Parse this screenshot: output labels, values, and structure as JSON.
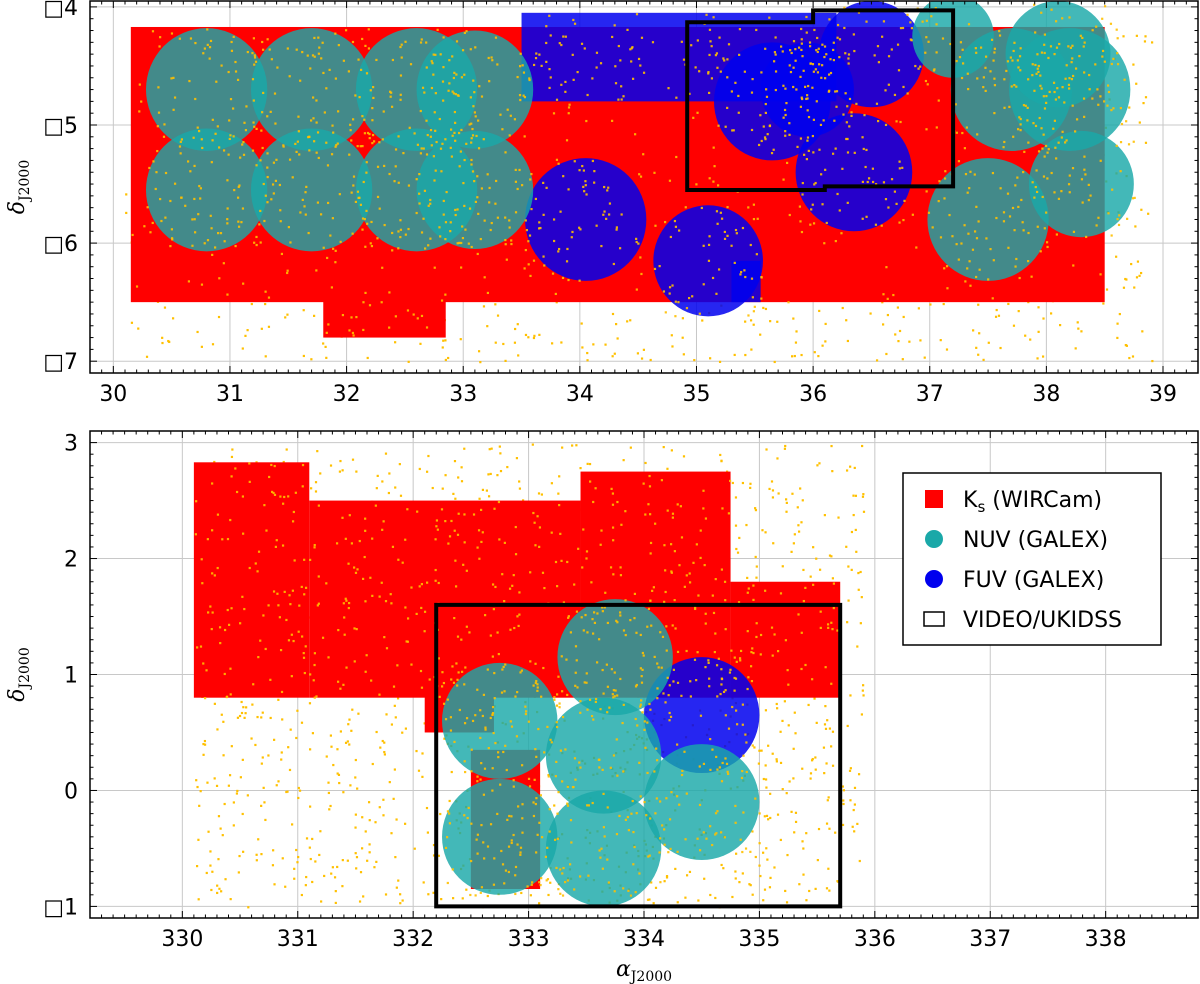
{
  "chart_data": [
    {
      "type": "scatter",
      "panel": "top",
      "xlim": [
        29.8,
        39.3
      ],
      "ylim": [
        -7.1,
        -3.95
      ],
      "xticks": [
        30,
        31,
        32,
        33,
        34,
        35,
        36,
        37,
        38,
        39
      ],
      "yticks": [
        -4,
        -5,
        -6,
        -7
      ],
      "ytick_labels": [
        "□4",
        "□5",
        "□6",
        "□7"
      ],
      "ylabel": "δ",
      "ylabel_sub": "J2000",
      "grid": true,
      "scatter": {
        "color": "#ffc000",
        "extent": {
          "x": [
            30.1,
            38.9
          ],
          "y": [
            -7.0,
            -4.2
          ]
        }
      },
      "regions": [
        {
          "series": "Ks",
          "kind": "rect",
          "x": [
            30.15,
            38.5
          ],
          "y": [
            -6.5,
            -4.17
          ]
        },
        {
          "series": "Ks",
          "kind": "rect",
          "x": [
            31.8,
            32.85
          ],
          "y": [
            -6.8,
            -6.4
          ]
        },
        {
          "series": "FUV",
          "kind": "rect",
          "x": [
            33.5,
            36.2
          ],
          "y": [
            -4.8,
            -4.05
          ]
        },
        {
          "series": "FUV",
          "kind": "circle",
          "cx": 34.05,
          "cy": -5.8,
          "r": 0.52
        },
        {
          "series": "FUV",
          "kind": "circle",
          "cx": 35.1,
          "cy": -6.15,
          "r": 0.47
        },
        {
          "series": "FUV",
          "kind": "circle",
          "cx": 35.65,
          "cy": -4.8,
          "r": 0.5
        },
        {
          "series": "FUV",
          "kind": "circle",
          "cx": 36.35,
          "cy": -5.4,
          "r": 0.5
        },
        {
          "series": "FUV",
          "kind": "circle",
          "cx": 36.5,
          "cy": -4.4,
          "r": 0.45
        },
        {
          "series": "FUV",
          "kind": "circle",
          "cx": 35.95,
          "cy": -4.7,
          "r": 0.4
        },
        {
          "series": "NUV",
          "kind": "circle",
          "cx": 30.8,
          "cy": -4.7,
          "r": 0.52
        },
        {
          "series": "NUV",
          "kind": "circle",
          "cx": 31.7,
          "cy": -4.7,
          "r": 0.52
        },
        {
          "series": "NUV",
          "kind": "circle",
          "cx": 32.6,
          "cy": -4.7,
          "r": 0.52
        },
        {
          "series": "NUV",
          "kind": "circle",
          "cx": 33.1,
          "cy": -4.7,
          "r": 0.5
        },
        {
          "series": "NUV",
          "kind": "circle",
          "cx": 30.8,
          "cy": -5.55,
          "r": 0.52
        },
        {
          "series": "NUV",
          "kind": "circle",
          "cx": 31.7,
          "cy": -5.55,
          "r": 0.52
        },
        {
          "series": "NUV",
          "kind": "circle",
          "cx": 32.6,
          "cy": -5.55,
          "r": 0.52
        },
        {
          "series": "NUV",
          "kind": "circle",
          "cx": 33.1,
          "cy": -5.55,
          "r": 0.5
        },
        {
          "series": "NUV",
          "kind": "circle",
          "cx": 37.7,
          "cy": -4.7,
          "r": 0.52
        },
        {
          "series": "NUV",
          "kind": "circle",
          "cx": 38.2,
          "cy": -4.7,
          "r": 0.52
        },
        {
          "series": "NUV",
          "kind": "circle",
          "cx": 37.5,
          "cy": -5.8,
          "r": 0.52
        },
        {
          "series": "NUV",
          "kind": "circle",
          "cx": 38.3,
          "cy": -5.5,
          "r": 0.45
        },
        {
          "series": "NUV",
          "kind": "circle",
          "cx": 37.2,
          "cy": -4.25,
          "r": 0.35
        },
        {
          "series": "NUV",
          "kind": "circle",
          "cx": 38.1,
          "cy": -4.4,
          "r": 0.45
        },
        {
          "series": "FUV",
          "kind": "rect",
          "x": [
            35.3,
            35.55
          ],
          "y": [
            -6.5,
            -6.15
          ]
        }
      ],
      "video_outline": [
        [
          34.92,
          -4.13
        ],
        [
          36.0,
          -4.13
        ],
        [
          36.0,
          -4.03
        ],
        [
          37.2,
          -4.03
        ],
        [
          37.2,
          -5.52
        ],
        [
          36.1,
          -5.52
        ],
        [
          36.1,
          -5.55
        ],
        [
          34.92,
          -5.55
        ]
      ]
    },
    {
      "type": "scatter",
      "panel": "bottom",
      "xlim": [
        329.2,
        338.8
      ],
      "ylim": [
        -1.1,
        3.1
      ],
      "xticks": [
        330,
        331,
        332,
        333,
        334,
        335,
        336,
        337,
        338
      ],
      "yticks": [
        3,
        2,
        1,
        0,
        -1
      ],
      "ytick_labels": [
        "3",
        "2",
        "1",
        "0",
        "□1"
      ],
      "xlabel": "α",
      "xlabel_sub": "J2000",
      "ylabel": "δ",
      "ylabel_sub": "J2000",
      "grid": true,
      "scatter": {
        "color": "#ffc000",
        "extent": {
          "x": [
            330.1,
            335.9
          ],
          "y": [
            -1.0,
            3.0
          ]
        }
      },
      "regions": [
        {
          "series": "Ks",
          "kind": "rect",
          "x": [
            330.1,
            331.1
          ],
          "y": [
            0.8,
            2.83
          ]
        },
        {
          "series": "Ks",
          "kind": "rect",
          "x": [
            331.1,
            333.45
          ],
          "y": [
            0.8,
            2.5
          ]
        },
        {
          "series": "Ks",
          "kind": "rect",
          "x": [
            333.45,
            334.75
          ],
          "y": [
            0.8,
            2.75
          ]
        },
        {
          "series": "Ks",
          "kind": "rect",
          "x": [
            334.75,
            335.7
          ],
          "y": [
            0.8,
            1.8
          ]
        },
        {
          "series": "Ks",
          "kind": "rect",
          "x": [
            332.1,
            332.7
          ],
          "y": [
            0.5,
            0.9
          ]
        },
        {
          "series": "Ks",
          "kind": "rect",
          "x": [
            332.5,
            333.1
          ],
          "y": [
            -0.85,
            0.35
          ]
        },
        {
          "series": "NUV",
          "kind": "circle",
          "cx": 333.75,
          "cy": 1.15,
          "r": 0.5
        },
        {
          "series": "NUV",
          "kind": "circle",
          "cx": 332.75,
          "cy": 0.6,
          "r": 0.5
        },
        {
          "series": "NUV",
          "kind": "circle",
          "cx": 333.65,
          "cy": 0.3,
          "r": 0.5
        },
        {
          "series": "NUV",
          "kind": "circle",
          "cx": 332.75,
          "cy": -0.4,
          "r": 0.5
        },
        {
          "series": "NUV",
          "kind": "circle",
          "cx": 333.65,
          "cy": -0.5,
          "r": 0.5
        },
        {
          "series": "NUV",
          "kind": "circle",
          "cx": 334.5,
          "cy": -0.1,
          "r": 0.5
        },
        {
          "series": "FUV",
          "kind": "circle",
          "cx": 334.5,
          "cy": 0.65,
          "r": 0.5
        }
      ],
      "video_outline": [
        [
          332.2,
          1.6
        ],
        [
          335.7,
          1.6
        ],
        [
          335.7,
          -1.0
        ],
        [
          332.2,
          -1.0
        ]
      ]
    }
  ],
  "legend": {
    "placement": "top-right",
    "items": [
      {
        "series": "Ks",
        "marker": "square",
        "color": "#ff0000",
        "label_main": "K",
        "label_sub": "s",
        "label_rest": " (WIRCam)"
      },
      {
        "series": "NUV",
        "marker": "circle",
        "color": "#1aa8a8",
        "label_main": "NUV",
        "label_sub": "",
        "label_rest": " (GALEX)"
      },
      {
        "series": "FUV",
        "marker": "circle",
        "color": "#0000ee",
        "label_main": "FUV",
        "label_sub": "",
        "label_rest": " (GALEX)"
      },
      {
        "series": "VIDEO",
        "marker": "open-square",
        "color": "#000000",
        "label_main": "VIDEO/UKIDSS",
        "label_sub": "",
        "label_rest": ""
      }
    ]
  },
  "colors": {
    "Ks": "#ff0000",
    "NUV": "#1aa8a8",
    "FUV": "#0000ee",
    "scatter": "#ffc000",
    "outline": "#000000",
    "grid": "#c8c8c8"
  }
}
